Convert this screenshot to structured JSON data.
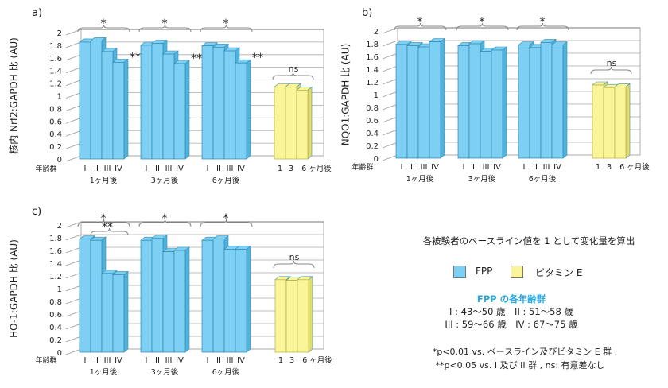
{
  "colors": {
    "fpp": "#7dd0f3",
    "fpp_side": "#4fb3de",
    "vite": "#fbf59a",
    "vite_side": "#e6dc6a",
    "accent": "#29a8e0"
  },
  "chart_data": [
    {
      "panel": "a)",
      "type": "bar",
      "ylabel": "核内 Nrf2:GAPDH 比 (AU)",
      "ylim": [
        0,
        2
      ],
      "yticks": [
        "0",
        "0.2",
        "0.4",
        "0.6",
        "0.8",
        "1",
        "1.2",
        "1.4",
        "1.6",
        "1.8",
        "2"
      ],
      "age_label": "年齢群",
      "groups": [
        {
          "label": "1ヶ月後",
          "series": "FPP",
          "categories": [
            "I",
            "II",
            "III",
            "IV"
          ],
          "values": [
            1.85,
            1.87,
            1.7,
            1.53
          ],
          "star": "*",
          "iv_mark": "**"
        },
        {
          "label": "3ヶ月後",
          "series": "FPP",
          "categories": [
            "I",
            "II",
            "III",
            "IV"
          ],
          "values": [
            1.8,
            1.83,
            1.66,
            1.51
          ],
          "star": "*",
          "iv_mark": "**"
        },
        {
          "label": "6ヶ月後",
          "series": "FPP",
          "categories": [
            "I",
            "II",
            "III",
            "IV"
          ],
          "values": [
            1.79,
            1.77,
            1.71,
            1.52
          ],
          "star": "*",
          "iv_mark": "**"
        },
        {
          "label": "",
          "series": "ビタミン E",
          "categories": [
            "1",
            "3",
            "6 ヶ月後"
          ],
          "values": [
            1.14,
            1.14,
            1.09
          ],
          "star": "ns"
        }
      ]
    },
    {
      "panel": "b)",
      "type": "bar",
      "ylabel": "NQO1:GAPDH 比 (AU)",
      "ylim": [
        0,
        2
      ],
      "yticks": [
        "0",
        "0.2",
        "0.4",
        "0.6",
        "0.8",
        "1",
        "1.2",
        "1.4",
        "1.6",
        "1.8",
        "2"
      ],
      "age_label": "年齢群",
      "groups": [
        {
          "label": "1ヶ月後",
          "series": "FPP",
          "categories": [
            "I",
            "II",
            "III",
            "IV"
          ],
          "values": [
            1.79,
            1.77,
            1.75,
            1.83
          ],
          "star": "*"
        },
        {
          "label": "3ヶ月後",
          "series": "FPP",
          "categories": [
            "I",
            "II",
            "III",
            "IV"
          ],
          "values": [
            1.77,
            1.8,
            1.68,
            1.7
          ],
          "star": "*"
        },
        {
          "label": "6ヶ月後",
          "series": "FPP",
          "categories": [
            "I",
            "II",
            "III",
            "IV"
          ],
          "values": [
            1.78,
            1.74,
            1.82,
            1.78
          ],
          "star": "*"
        },
        {
          "label": "",
          "series": "ビタミン E",
          "categories": [
            "1",
            "3",
            "6 ヶ月後"
          ],
          "values": [
            1.15,
            1.11,
            1.12
          ],
          "star": "ns"
        }
      ]
    },
    {
      "panel": "c)",
      "type": "bar",
      "ylabel": "HO-1:GAPDH 比 (AU)",
      "ylim": [
        0,
        2
      ],
      "yticks": [
        "0",
        "0.2",
        "0.4",
        "0.6",
        "0.8",
        "1",
        "1.2",
        "1.4",
        "1.6",
        "1.8",
        "2"
      ],
      "age_label": "年齢群",
      "groups": [
        {
          "label": "1ヶ月後",
          "series": "FPP",
          "categories": [
            "I",
            "II",
            "III",
            "IV"
          ],
          "values": [
            1.78,
            1.76,
            1.24,
            1.22
          ],
          "star": "*",
          "sub_mark": "**"
        },
        {
          "label": "3ヶ月後",
          "series": "FPP",
          "categories": [
            "I",
            "II",
            "III",
            "IV"
          ],
          "values": [
            1.76,
            1.79,
            1.58,
            1.6
          ],
          "star": "*"
        },
        {
          "label": "6ヶ月後",
          "series": "FPP",
          "categories": [
            "I",
            "II",
            "III",
            "IV"
          ],
          "values": [
            1.76,
            1.78,
            1.62,
            1.62
          ],
          "star": "*"
        },
        {
          "label": "",
          "series": "ビタミン E",
          "categories": [
            "1",
            "3",
            "6 ヶ月後"
          ],
          "values": [
            1.14,
            1.13,
            1.14
          ],
          "star": "ns"
        }
      ]
    }
  ],
  "legend": {
    "note": "各被験者のベースライン値を 1 として変化量を算出",
    "items": [
      {
        "label": "FPP",
        "color": "#7dd0f3"
      },
      {
        "label": "ビタミン E",
        "color": "#fbf59a"
      }
    ],
    "age_title": "FPP の各年齢群",
    "age_line1": "I : 43〜50 歳　II : 51〜58 歳",
    "age_line2": "III : 59〜66 歳　IV : 67〜75 歳",
    "foot1": "*p<0.01 vs. ベースライン及びビタミン E 群 ,",
    "foot2": "**p<0.05 vs. I 及び II 群 ,  ns: 有意差なし"
  }
}
